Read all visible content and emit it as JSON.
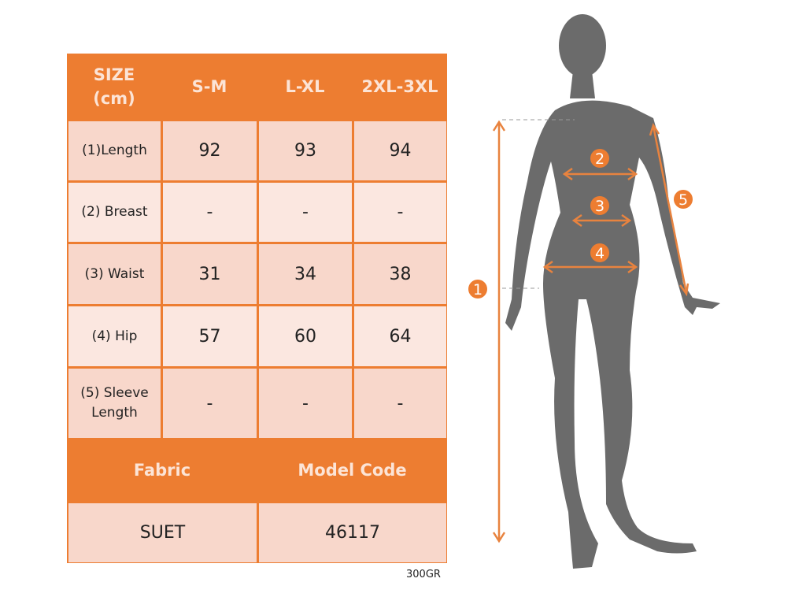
{
  "table": {
    "header": [
      "SIZE\n(cm)",
      "S-M",
      "L-XL",
      "2XL-3XL"
    ],
    "rows": [
      {
        "label": "(1)Length",
        "values": [
          "92",
          "93",
          "94"
        ]
      },
      {
        "label": "(2) Breast",
        "values": [
          "-",
          "-",
          "-"
        ]
      },
      {
        "label": "(3) Waist",
        "values": [
          "31",
          "34",
          "38"
        ]
      },
      {
        "label": "(4) Hip",
        "values": [
          "57",
          "60",
          "64"
        ]
      },
      {
        "label": "(5) Sleeve\nLength",
        "values": [
          "-",
          "-",
          "-"
        ]
      }
    ],
    "footer_header": [
      "Fabric",
      "Model Code"
    ],
    "footer_values": [
      "SUET",
      "46117"
    ]
  },
  "weight_note": "300GR",
  "figure": {
    "markers": [
      "1",
      "2",
      "3",
      "4",
      "5"
    ]
  },
  "colors": {
    "accent": "#ED7D31",
    "row_dark": "#F8D7CB",
    "row_light": "#FBE7E0",
    "silhouette": "#6B6B6B"
  }
}
